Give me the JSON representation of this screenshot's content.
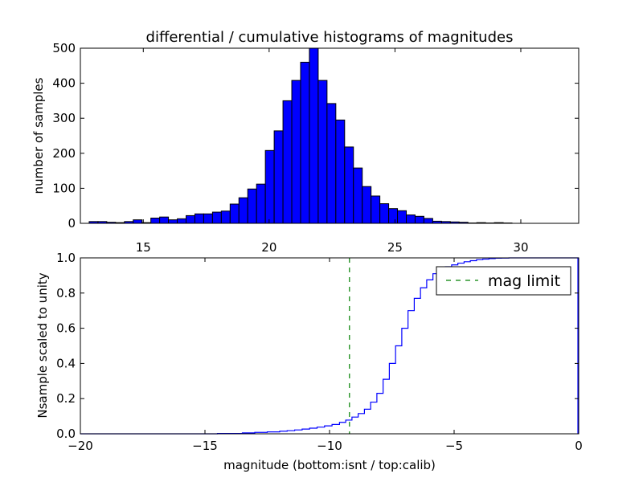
{
  "chart_data": [
    {
      "type": "bar",
      "title": "differential / cumulative histograms of magnitudes",
      "xlabel": "",
      "ylabel": "number of samples",
      "xlim": [
        12.5,
        32.3
      ],
      "ylim": [
        0,
        500
      ],
      "xticks": [
        15,
        20,
        25,
        30
      ],
      "yticks": [
        0,
        100,
        200,
        300,
        400,
        500
      ],
      "bar_color": "#0000ff",
      "bin_start": 12.85,
      "bin_width": 0.35,
      "values": [
        5,
        5,
        3,
        2,
        5,
        10,
        2,
        15,
        18,
        10,
        13,
        22,
        27,
        27,
        32,
        35,
        55,
        73,
        98,
        112,
        208,
        264,
        350,
        408,
        460,
        500,
        408,
        342,
        295,
        218,
        158,
        105,
        78,
        56,
        42,
        36,
        24,
        20,
        14,
        6,
        5,
        4,
        3,
        1,
        2,
        1,
        2,
        1
      ]
    },
    {
      "type": "line",
      "title": "",
      "xlabel": "magnitude (bottom:isnt / top:calib)",
      "ylabel": "Nsample scaled to unity",
      "xlim": [
        -20,
        0
      ],
      "ylim": [
        0,
        1
      ],
      "xticks": [
        -20,
        -15,
        -10,
        -5,
        0
      ],
      "xtick_labels": [
        "−20",
        "−15",
        "−10",
        "−5",
        "0"
      ],
      "yticks": [
        0,
        0.2,
        0.4,
        0.6,
        0.8,
        1.0
      ],
      "ytick_labels": [
        "0.0",
        "0.2",
        "0.4",
        "0.6",
        "0.8",
        "1.0"
      ],
      "series": [
        {
          "color": "#0000ff",
          "step": true,
          "x": [
            -20,
            -14.5,
            -13.5,
            -13,
            -12.5,
            -12,
            -11.7,
            -11.4,
            -11.1,
            -10.8,
            -10.5,
            -10.2,
            -9.9,
            -9.6,
            -9.35,
            -9.1,
            -8.85,
            -8.6,
            -8.35,
            -8.1,
            -7.85,
            -7.6,
            -7.35,
            -7.1,
            -6.85,
            -6.6,
            -6.35,
            -6.1,
            -5.85,
            -5.6,
            -5.35,
            -5.1,
            -4.85,
            -4.6,
            -4.35,
            -4.1,
            -3.85,
            -3.6,
            -3.35,
            -3.1,
            -2.8,
            -2.5,
            0
          ],
          "y": [
            0,
            0.002,
            0.005,
            0.008,
            0.011,
            0.015,
            0.018,
            0.022,
            0.027,
            0.032,
            0.038,
            0.045,
            0.053,
            0.065,
            0.078,
            0.095,
            0.115,
            0.14,
            0.18,
            0.23,
            0.31,
            0.4,
            0.5,
            0.6,
            0.7,
            0.77,
            0.83,
            0.875,
            0.91,
            0.93,
            0.95,
            0.96,
            0.97,
            0.978,
            0.984,
            0.99,
            0.993,
            0.996,
            0.998,
            0.999,
            1.0,
            1.0,
            1.0
          ]
        },
        {
          "name": "mag limit",
          "color": "#008000",
          "dashed": true,
          "vertical_at": -9.2
        }
      ],
      "legend": {
        "position": "top-right",
        "label": "mag limit"
      }
    }
  ]
}
